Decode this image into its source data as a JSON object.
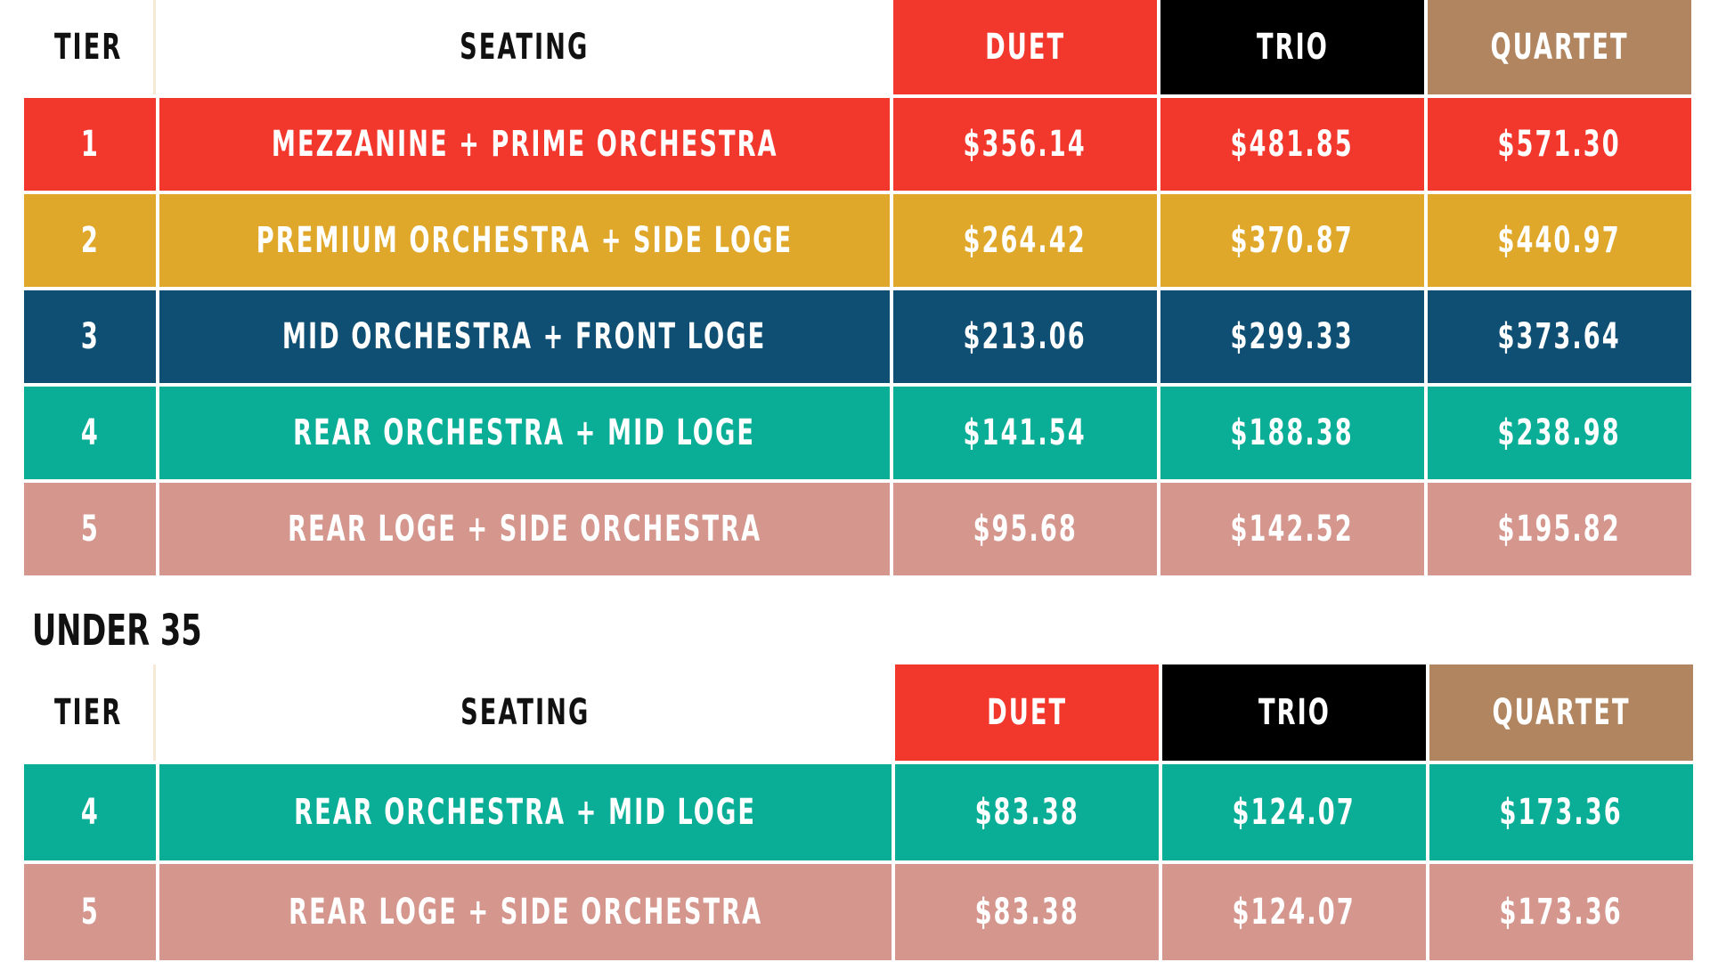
{
  "colors": {
    "duet": "#f2372d",
    "trio": "#000000",
    "quartet": "#b08560",
    "tier_1": "#f2372d",
    "tier_2": "#e0a82a",
    "tier_3": "#0f4f73",
    "tier_4": "#0aae96",
    "tier_5": "#d5968e"
  },
  "main_table": {
    "headers": {
      "tier": "TIER",
      "seating": "SEATING",
      "duet": "DUET",
      "trio": "TRIO",
      "quartet": "QUARTET"
    },
    "rows": [
      {
        "tier": "1",
        "seating": "MEZZANINE + PRIME ORCHESTRA",
        "duet": "$356.14",
        "trio": "$481.85",
        "quartet": "$571.30"
      },
      {
        "tier": "2",
        "seating": "PREMIUM ORCHESTRA + SIDE LOGE",
        "duet": "$264.42",
        "trio": "$370.87",
        "quartet": "$440.97"
      },
      {
        "tier": "3",
        "seating": "MID ORCHESTRA + FRONT LOGE",
        "duet": "$213.06",
        "trio": "$299.33",
        "quartet": "$373.64"
      },
      {
        "tier": "4",
        "seating": "REAR ORCHESTRA + MID LOGE",
        "duet": "$141.54",
        "trio": "$188.38",
        "quartet": "$238.98"
      },
      {
        "tier": "5",
        "seating": "REAR LOGE + SIDE ORCHESTRA",
        "duet": "$95.68",
        "trio": "$142.52",
        "quartet": "$195.82"
      }
    ]
  },
  "under35": {
    "title": "UNDER 35",
    "headers": {
      "tier": "TIER",
      "seating": "SEATING",
      "duet": "DUET",
      "trio": "TRIO",
      "quartet": "QUARTET"
    },
    "rows": [
      {
        "tier": "4",
        "seating": "REAR ORCHESTRA + MID LOGE",
        "duet": "$83.38",
        "trio": "$124.07",
        "quartet": "$173.36"
      },
      {
        "tier": "5",
        "seating": "REAR LOGE + SIDE ORCHESTRA",
        "duet": "$83.38",
        "trio": "$124.07",
        "quartet": "$173.36"
      }
    ]
  }
}
